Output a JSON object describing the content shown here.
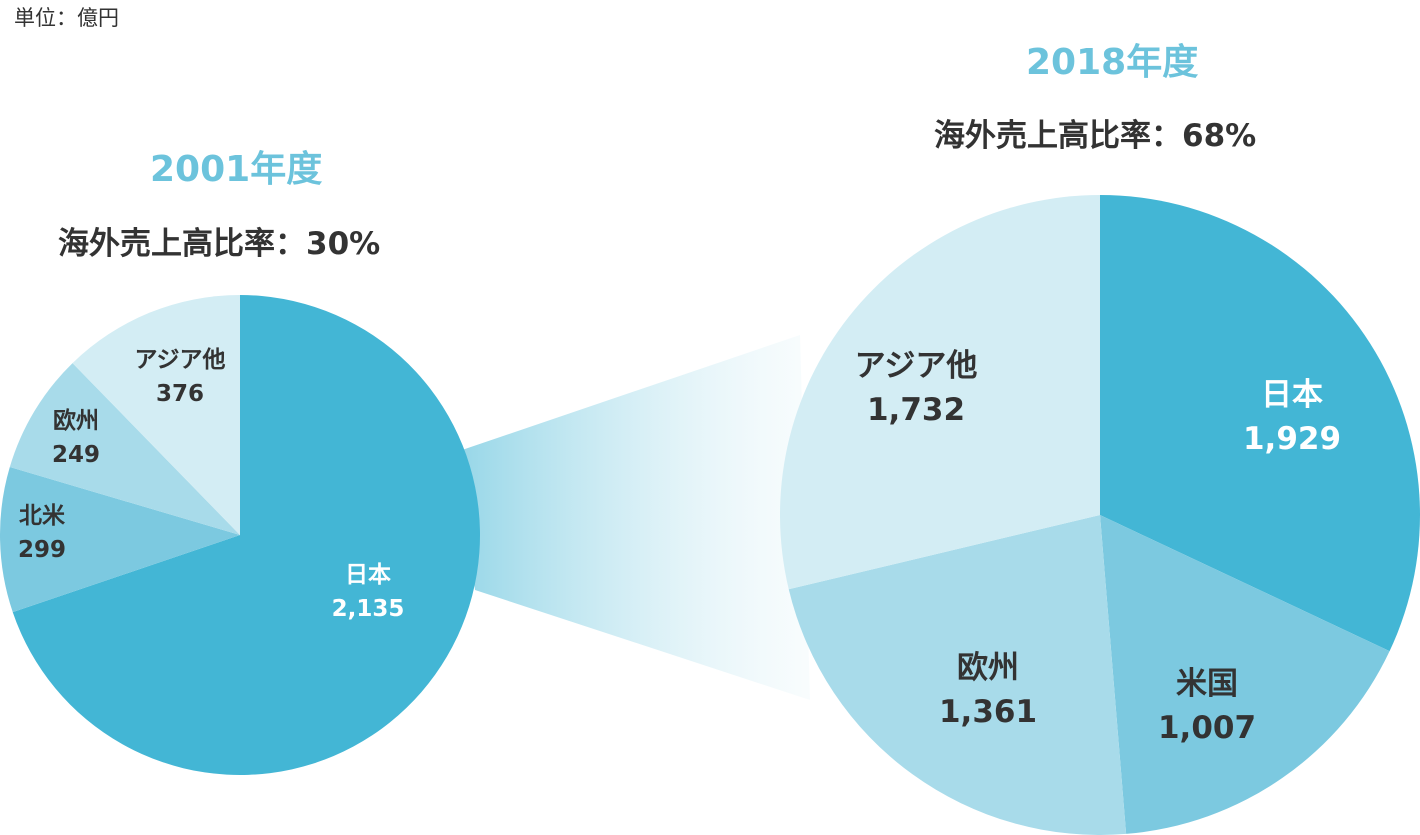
{
  "unit_label": "単位：億円",
  "chart_data": [
    {
      "type": "pie",
      "title": "2001年度",
      "subtitle": "海外売上高比率：30%",
      "slices": [
        {
          "label": "日本",
          "value": 2135,
          "value_label": "2,135",
          "color": "#43b6d5",
          "text_color": "#ffffff"
        },
        {
          "label": "北米",
          "value": 299,
          "value_label": "299",
          "color": "#7cc9e0",
          "text_color": "#333333"
        },
        {
          "label": "欧州",
          "value": 249,
          "value_label": "249",
          "color": "#a8dbea",
          "text_color": "#333333"
        },
        {
          "label": "アジア他",
          "value": 376,
          "value_label": "376",
          "color": "#d3edf4",
          "text_color": "#333333"
        }
      ]
    },
    {
      "type": "pie",
      "title": "2018年度",
      "subtitle": "海外売上高比率：68%",
      "slices": [
        {
          "label": "日本",
          "value": 1929,
          "value_label": "1,929",
          "color": "#43b6d5",
          "text_color": "#ffffff"
        },
        {
          "label": "米国",
          "value": 1007,
          "value_label": "1,007",
          "color": "#7cc9e0",
          "text_color": "#333333"
        },
        {
          "label": "欧州",
          "value": 1361,
          "value_label": "1,361",
          "color": "#a8dbea",
          "text_color": "#333333"
        },
        {
          "label": "アジア他",
          "value": 1732,
          "value_label": "1,732",
          "color": "#d3edf4",
          "text_color": "#333333"
        }
      ]
    }
  ]
}
